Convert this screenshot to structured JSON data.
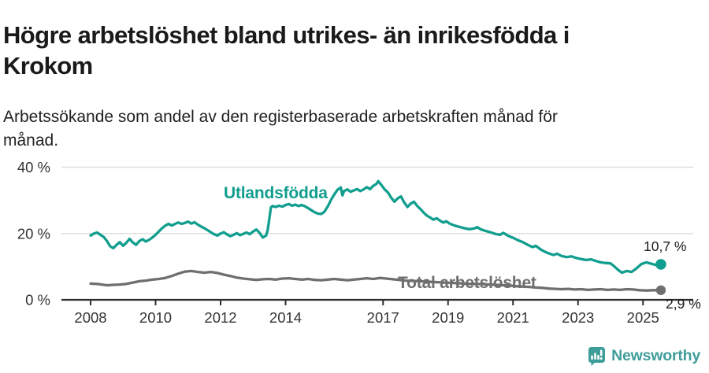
{
  "header": {
    "title_lines": [
      "Högre arbetslöshet bland utrikes- än inrikesfödda i",
      "Krokom"
    ],
    "subtitle_lines": [
      "Arbetssökande som andel av den registerbaserade arbetskraften månad för",
      "månad."
    ]
  },
  "colors": {
    "series_foreign": "#119e8e",
    "series_total": "#6f6f6f",
    "axis": "#2e2e2e",
    "axis_text": "#333333",
    "grid": "#e0e0e0",
    "value_label": "#1a1a1a",
    "brand": "#3f9d99"
  },
  "brand": {
    "name": "Newsworthy",
    "icon": "speech-bubble-bar-chart-icon"
  },
  "chart_data": {
    "type": "line",
    "title": "Högre arbetslöshet bland utrikes- än inrikesfödda i Krokom",
    "subtitle": "Arbetssökande som andel av den registerbaserade arbetskraften månad för månad.",
    "xlabel": "",
    "ylabel": "",
    "yunit": "%",
    "ylim": [
      0,
      44
    ],
    "xlim": [
      2007.1,
      2026.3
    ],
    "grid": "horizontal-only",
    "legend_position": "inline-annotations",
    "y_ticks": [
      {
        "value": 0,
        "label": "0 %"
      },
      {
        "value": 20,
        "label": "20 %"
      },
      {
        "value": 40,
        "label": "40 %"
      }
    ],
    "x_ticks": [
      {
        "value": 2008,
        "label": "2008"
      },
      {
        "value": 2010,
        "label": "2010"
      },
      {
        "value": 2012,
        "label": "2012"
      },
      {
        "value": 2014,
        "label": "2014"
      },
      {
        "value": 2017,
        "label": "2017"
      },
      {
        "value": 2019,
        "label": "2019"
      },
      {
        "value": 2021,
        "label": "2021"
      },
      {
        "value": 2023,
        "label": "2023"
      },
      {
        "value": 2025,
        "label": "2025"
      }
    ],
    "series": [
      {
        "name": "Utlandsfödda",
        "color": "#119e8e",
        "end_label": "10,7 %",
        "end_value": 10.7,
        "points": [
          [
            2008.0,
            19.4
          ],
          [
            2008.1,
            20.0
          ],
          [
            2008.2,
            20.3
          ],
          [
            2008.3,
            19.6
          ],
          [
            2008.4,
            19.0
          ],
          [
            2008.5,
            17.8
          ],
          [
            2008.6,
            16.2
          ],
          [
            2008.7,
            15.6
          ],
          [
            2008.8,
            16.6
          ],
          [
            2008.9,
            17.4
          ],
          [
            2009.0,
            16.3
          ],
          [
            2009.1,
            17.2
          ],
          [
            2009.2,
            18.4
          ],
          [
            2009.3,
            17.3
          ],
          [
            2009.4,
            16.6
          ],
          [
            2009.5,
            17.7
          ],
          [
            2009.6,
            18.3
          ],
          [
            2009.7,
            17.6
          ],
          [
            2009.8,
            18.1
          ],
          [
            2009.9,
            18.8
          ],
          [
            2010.0,
            19.6
          ],
          [
            2010.1,
            20.6
          ],
          [
            2010.2,
            21.6
          ],
          [
            2010.3,
            22.4
          ],
          [
            2010.4,
            22.9
          ],
          [
            2010.5,
            22.4
          ],
          [
            2010.6,
            22.9
          ],
          [
            2010.7,
            23.3
          ],
          [
            2010.8,
            22.9
          ],
          [
            2010.9,
            23.2
          ],
          [
            2011.0,
            23.6
          ],
          [
            2011.1,
            23.0
          ],
          [
            2011.2,
            23.4
          ],
          [
            2011.3,
            22.7
          ],
          [
            2011.4,
            22.1
          ],
          [
            2011.5,
            21.6
          ],
          [
            2011.6,
            21.0
          ],
          [
            2011.7,
            20.4
          ],
          [
            2011.8,
            19.8
          ],
          [
            2011.9,
            19.4
          ],
          [
            2012.0,
            20.0
          ],
          [
            2012.1,
            20.4
          ],
          [
            2012.2,
            19.7
          ],
          [
            2012.3,
            19.2
          ],
          [
            2012.4,
            19.6
          ],
          [
            2012.5,
            20.1
          ],
          [
            2012.6,
            19.5
          ],
          [
            2012.7,
            19.9
          ],
          [
            2012.8,
            20.3
          ],
          [
            2012.9,
            19.8
          ],
          [
            2013.0,
            20.6
          ],
          [
            2013.1,
            21.2
          ],
          [
            2013.2,
            20.2
          ],
          [
            2013.3,
            18.8
          ],
          [
            2013.4,
            19.4
          ],
          [
            2013.45,
            21.0
          ],
          [
            2013.5,
            24.5
          ],
          [
            2013.55,
            27.9
          ],
          [
            2013.6,
            28.3
          ],
          [
            2013.7,
            28.0
          ],
          [
            2013.8,
            28.4
          ],
          [
            2013.9,
            28.1
          ],
          [
            2014.0,
            28.6
          ],
          [
            2014.1,
            28.9
          ],
          [
            2014.2,
            28.4
          ],
          [
            2014.3,
            28.7
          ],
          [
            2014.4,
            28.3
          ],
          [
            2014.5,
            28.6
          ],
          [
            2014.6,
            28.2
          ],
          [
            2014.7,
            27.6
          ],
          [
            2014.8,
            27.0
          ],
          [
            2014.9,
            26.4
          ],
          [
            2015.0,
            26.0
          ],
          [
            2015.1,
            25.9
          ],
          [
            2015.2,
            26.6
          ],
          [
            2015.3,
            28.2
          ],
          [
            2015.4,
            30.2
          ],
          [
            2015.5,
            31.8
          ],
          [
            2015.6,
            33.2
          ],
          [
            2015.7,
            33.9
          ],
          [
            2015.75,
            31.5
          ],
          [
            2015.8,
            32.8
          ],
          [
            2015.9,
            33.3
          ],
          [
            2016.0,
            32.6
          ],
          [
            2016.1,
            33.0
          ],
          [
            2016.2,
            33.4
          ],
          [
            2016.3,
            32.8
          ],
          [
            2016.4,
            33.3
          ],
          [
            2016.5,
            34.0
          ],
          [
            2016.6,
            33.4
          ],
          [
            2016.7,
            34.4
          ],
          [
            2016.8,
            35.0
          ],
          [
            2016.85,
            35.8
          ],
          [
            2016.95,
            34.6
          ],
          [
            2017.05,
            33.3
          ],
          [
            2017.15,
            32.4
          ],
          [
            2017.25,
            30.8
          ],
          [
            2017.35,
            29.6
          ],
          [
            2017.45,
            30.6
          ],
          [
            2017.55,
            31.2
          ],
          [
            2017.65,
            29.4
          ],
          [
            2017.75,
            28.0
          ],
          [
            2017.85,
            29.0
          ],
          [
            2017.95,
            29.6
          ],
          [
            2018.05,
            28.3
          ],
          [
            2018.15,
            27.4
          ],
          [
            2018.25,
            26.3
          ],
          [
            2018.35,
            25.4
          ],
          [
            2018.45,
            24.8
          ],
          [
            2018.55,
            24.2
          ],
          [
            2018.65,
            24.6
          ],
          [
            2018.75,
            23.9
          ],
          [
            2018.85,
            23.3
          ],
          [
            2018.95,
            23.7
          ],
          [
            2019.05,
            23.0
          ],
          [
            2019.2,
            22.4
          ],
          [
            2019.35,
            22.0
          ],
          [
            2019.5,
            21.6
          ],
          [
            2019.65,
            21.3
          ],
          [
            2019.8,
            21.5
          ],
          [
            2019.9,
            21.9
          ],
          [
            2020.0,
            21.3
          ],
          [
            2020.15,
            20.8
          ],
          [
            2020.3,
            20.4
          ],
          [
            2020.45,
            19.9
          ],
          [
            2020.6,
            19.6
          ],
          [
            2020.7,
            20.2
          ],
          [
            2020.85,
            19.3
          ],
          [
            2021.0,
            18.7
          ],
          [
            2021.15,
            18.0
          ],
          [
            2021.3,
            17.4
          ],
          [
            2021.45,
            16.6
          ],
          [
            2021.6,
            15.9
          ],
          [
            2021.7,
            16.3
          ],
          [
            2021.85,
            15.2
          ],
          [
            2022.0,
            14.4
          ],
          [
            2022.1,
            14.0
          ],
          [
            2022.25,
            13.5
          ],
          [
            2022.35,
            13.9
          ],
          [
            2022.5,
            13.2
          ],
          [
            2022.65,
            12.9
          ],
          [
            2022.8,
            13.1
          ],
          [
            2022.95,
            12.6
          ],
          [
            2023.1,
            12.3
          ],
          [
            2023.25,
            12.0
          ],
          [
            2023.4,
            12.2
          ],
          [
            2023.55,
            11.7
          ],
          [
            2023.7,
            11.3
          ],
          [
            2023.85,
            11.1
          ],
          [
            2024.0,
            11.0
          ],
          [
            2024.1,
            10.2
          ],
          [
            2024.25,
            8.9
          ],
          [
            2024.35,
            8.2
          ],
          [
            2024.5,
            8.7
          ],
          [
            2024.65,
            8.4
          ],
          [
            2024.8,
            9.5
          ],
          [
            2024.95,
            10.8
          ],
          [
            2025.1,
            11.3
          ],
          [
            2025.25,
            10.9
          ],
          [
            2025.4,
            10.5
          ],
          [
            2025.55,
            10.7
          ]
        ]
      },
      {
        "name": "Total arbetslöshet",
        "color": "#6f6f6f",
        "end_label": "2,9 %",
        "end_value": 2.9,
        "points": [
          [
            2008.0,
            4.9
          ],
          [
            2008.2,
            4.8
          ],
          [
            2008.35,
            4.6
          ],
          [
            2008.5,
            4.4
          ],
          [
            2008.7,
            4.5
          ],
          [
            2008.9,
            4.6
          ],
          [
            2009.1,
            4.8
          ],
          [
            2009.3,
            5.2
          ],
          [
            2009.5,
            5.6
          ],
          [
            2009.7,
            5.8
          ],
          [
            2009.9,
            6.1
          ],
          [
            2010.1,
            6.3
          ],
          [
            2010.3,
            6.6
          ],
          [
            2010.5,
            7.2
          ],
          [
            2010.7,
            7.9
          ],
          [
            2010.9,
            8.5
          ],
          [
            2011.1,
            8.7
          ],
          [
            2011.3,
            8.4
          ],
          [
            2011.5,
            8.2
          ],
          [
            2011.7,
            8.4
          ],
          [
            2011.9,
            8.1
          ],
          [
            2012.1,
            7.6
          ],
          [
            2012.3,
            7.2
          ],
          [
            2012.5,
            6.7
          ],
          [
            2012.7,
            6.4
          ],
          [
            2012.9,
            6.2
          ],
          [
            2013.1,
            6.0
          ],
          [
            2013.3,
            6.2
          ],
          [
            2013.5,
            6.3
          ],
          [
            2013.7,
            6.1
          ],
          [
            2013.9,
            6.4
          ],
          [
            2014.1,
            6.5
          ],
          [
            2014.3,
            6.3
          ],
          [
            2014.5,
            6.1
          ],
          [
            2014.7,
            6.3
          ],
          [
            2014.9,
            6.0
          ],
          [
            2015.1,
            5.9
          ],
          [
            2015.3,
            6.1
          ],
          [
            2015.5,
            6.3
          ],
          [
            2015.7,
            6.1
          ],
          [
            2015.9,
            5.9
          ],
          [
            2016.1,
            6.1
          ],
          [
            2016.3,
            6.3
          ],
          [
            2016.5,
            6.5
          ],
          [
            2016.7,
            6.3
          ],
          [
            2016.9,
            6.6
          ],
          [
            2017.1,
            6.4
          ],
          [
            2017.3,
            6.2
          ],
          [
            2017.5,
            6.0
          ],
          [
            2017.7,
            5.8
          ],
          [
            2017.9,
            5.7
          ],
          [
            2018.1,
            5.6
          ],
          [
            2018.3,
            5.5
          ],
          [
            2018.5,
            5.4
          ],
          [
            2018.7,
            5.3
          ],
          [
            2018.9,
            5.2
          ],
          [
            2019.1,
            5.1
          ],
          [
            2019.3,
            5.0
          ],
          [
            2019.5,
            4.9
          ],
          [
            2019.7,
            4.8
          ],
          [
            2019.9,
            4.8
          ],
          [
            2020.1,
            4.7
          ],
          [
            2020.3,
            4.6
          ],
          [
            2020.5,
            4.5
          ],
          [
            2020.7,
            4.4
          ],
          [
            2020.9,
            4.3
          ],
          [
            2021.1,
            4.1
          ],
          [
            2021.3,
            4.0
          ],
          [
            2021.5,
            3.9
          ],
          [
            2021.7,
            3.7
          ],
          [
            2021.9,
            3.6
          ],
          [
            2022.1,
            3.4
          ],
          [
            2022.3,
            3.3
          ],
          [
            2022.5,
            3.2
          ],
          [
            2022.7,
            3.3
          ],
          [
            2022.9,
            3.1
          ],
          [
            2023.1,
            3.2
          ],
          [
            2023.3,
            3.0
          ],
          [
            2023.5,
            3.1
          ],
          [
            2023.7,
            3.2
          ],
          [
            2023.9,
            3.0
          ],
          [
            2024.1,
            3.1
          ],
          [
            2024.3,
            3.0
          ],
          [
            2024.5,
            3.2
          ],
          [
            2024.7,
            3.1
          ],
          [
            2024.9,
            2.9
          ],
          [
            2025.1,
            2.8
          ],
          [
            2025.3,
            2.9
          ],
          [
            2025.55,
            2.9
          ]
        ]
      }
    ]
  }
}
